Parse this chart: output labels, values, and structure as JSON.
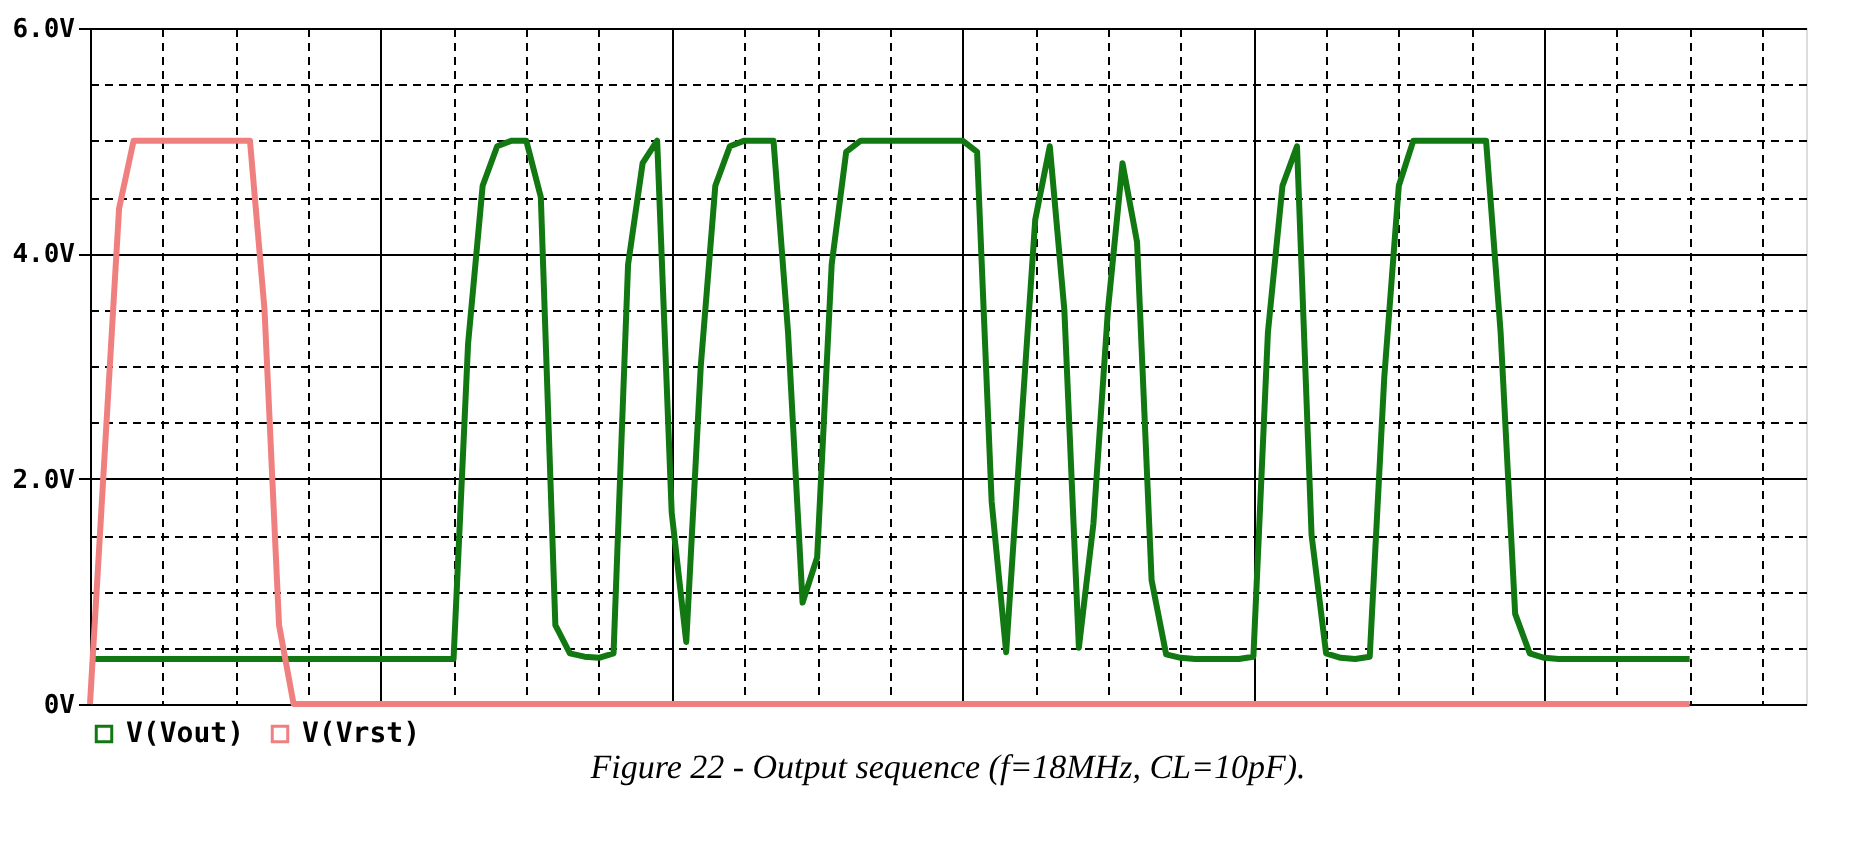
{
  "chart_data": {
    "type": "line",
    "annotations": [
      "Figure 22 - Output sequence (f=18MHz, CL=10pF)."
    ],
    "categories": [
      null,
      null,
      null,
      null,
      null,
      null,
      null,
      null,
      null,
      null,
      null,
      null,
      null,
      null,
      null,
      null,
      null,
      null,
      null,
      null,
      null,
      null,
      null,
      null,
      null,
      null,
      null,
      null,
      null,
      null,
      null,
      null,
      null,
      null,
      null,
      null,
      null,
      null,
      null,
      null,
      null,
      null,
      null,
      null,
      null,
      null,
      null,
      null,
      null,
      null,
      null,
      null,
      null,
      null,
      null,
      null,
      null,
      null,
      null,
      null,
      null,
      null,
      null,
      null,
      null,
      null,
      null,
      null,
      null,
      null,
      null,
      null,
      null,
      null,
      null,
      null,
      null,
      null,
      null,
      null,
      null,
      null,
      null,
      null,
      null,
      null,
      null,
      null,
      null,
      null,
      null,
      null,
      null,
      null,
      null,
      null,
      null,
      null,
      null,
      null,
      null,
      null,
      null,
      null,
      null,
      null,
      null,
      null,
      null,
      null,
      null,
      null,
      null,
      null,
      null,
      null,
      null,
      null,
      null
    ],
    "series": [
      {
        "name": "V(Vout)",
        "color": "#127812",
        "values": [
          0.4,
          0.4,
          0.4,
          0.4,
          0.4,
          0.4,
          0.4,
          0.4,
          0.4,
          0.4,
          0.4,
          0.4,
          0.4,
          0.4,
          0.4,
          0.4,
          0.4,
          0.4,
          0.4,
          0.4,
          0.4,
          0.4,
          0.4,
          0.4,
          0.4,
          0.4,
          3.2,
          4.6,
          4.95,
          5.0,
          5.0,
          4.5,
          0.7,
          0.45,
          0.42,
          0.41,
          0.45,
          3.9,
          4.8,
          5.0,
          1.7,
          0.55,
          3.0,
          4.6,
          4.95,
          5.0,
          5.0,
          5.0,
          3.3,
          0.9,
          1.3,
          3.9,
          4.9,
          5.0,
          5.0,
          5.0,
          5.0,
          5.0,
          5.0,
          5.0,
          5.0,
          4.9,
          1.8,
          0.46,
          2.4,
          4.3,
          4.95,
          3.5,
          0.5,
          1.6,
          3.5,
          4.8,
          4.1,
          1.1,
          0.44,
          0.41,
          0.4,
          0.4,
          0.4,
          0.4,
          0.42,
          3.3,
          4.6,
          4.95,
          1.5,
          0.45,
          0.41,
          0.4,
          0.42,
          2.9,
          4.6,
          5.0,
          5.0,
          5.0,
          5.0,
          5.0,
          5.0,
          3.3,
          0.8,
          0.45,
          0.41,
          0.4,
          0.4,
          0.4,
          0.4,
          0.4,
          0.4,
          0.4,
          0.4,
          0.4,
          0.4,
          null,
          null,
          null,
          null,
          null,
          null,
          null,
          null
        ]
      },
      {
        "name": "V(Vrst)",
        "color": "#f08080",
        "values": [
          0,
          2.2,
          4.4,
          5.0,
          5.0,
          5.0,
          5.0,
          5.0,
          5.0,
          5.0,
          5.0,
          5.0,
          3.5,
          0.7,
          0,
          0,
          0,
          0,
          0,
          0,
          0,
          0,
          0,
          0,
          0,
          0,
          0,
          0,
          0,
          0,
          0,
          0,
          0,
          0,
          0,
          0,
          0,
          0,
          0,
          0,
          0,
          0,
          0,
          0,
          0,
          0,
          0,
          0,
          0,
          0,
          0,
          0,
          0,
          0,
          0,
          0,
          0,
          0,
          0,
          0,
          0,
          0,
          0,
          0,
          0,
          0,
          0,
          0,
          0,
          0,
          0,
          0,
          0,
          0,
          0,
          0,
          0,
          0,
          0,
          0,
          0,
          0,
          0,
          0,
          0,
          0,
          0,
          0,
          0,
          0,
          0,
          0,
          0,
          0,
          0,
          0,
          0,
          0,
          0,
          0,
          0,
          0,
          0,
          0,
          0,
          0,
          0,
          0,
          0,
          0,
          0,
          null,
          null,
          null,
          null,
          null,
          null,
          null,
          null
        ]
      }
    ],
    "ylim": [
      0,
      6
    ],
    "yticks": [
      {
        "value": 0,
        "label": "0V"
      },
      {
        "value": 0.5,
        "label": null
      },
      {
        "value": 1,
        "label": null
      },
      {
        "value": 1.5,
        "label": null
      },
      {
        "value": 2,
        "label": "2.0V"
      },
      {
        "value": 2.5,
        "label": null
      },
      {
        "value": 3,
        "label": null
      },
      {
        "value": 3.5,
        "label": null
      },
      {
        "value": 4,
        "label": "4.0V"
      },
      {
        "value": 4.5,
        "label": null
      },
      {
        "value": 5,
        "label": null
      },
      {
        "value": 5.5,
        "label": null
      },
      {
        "value": 6,
        "label": "6.0V"
      }
    ],
    "grid": true,
    "tick_labels": "y",
    "legend": "bottom"
  }
}
